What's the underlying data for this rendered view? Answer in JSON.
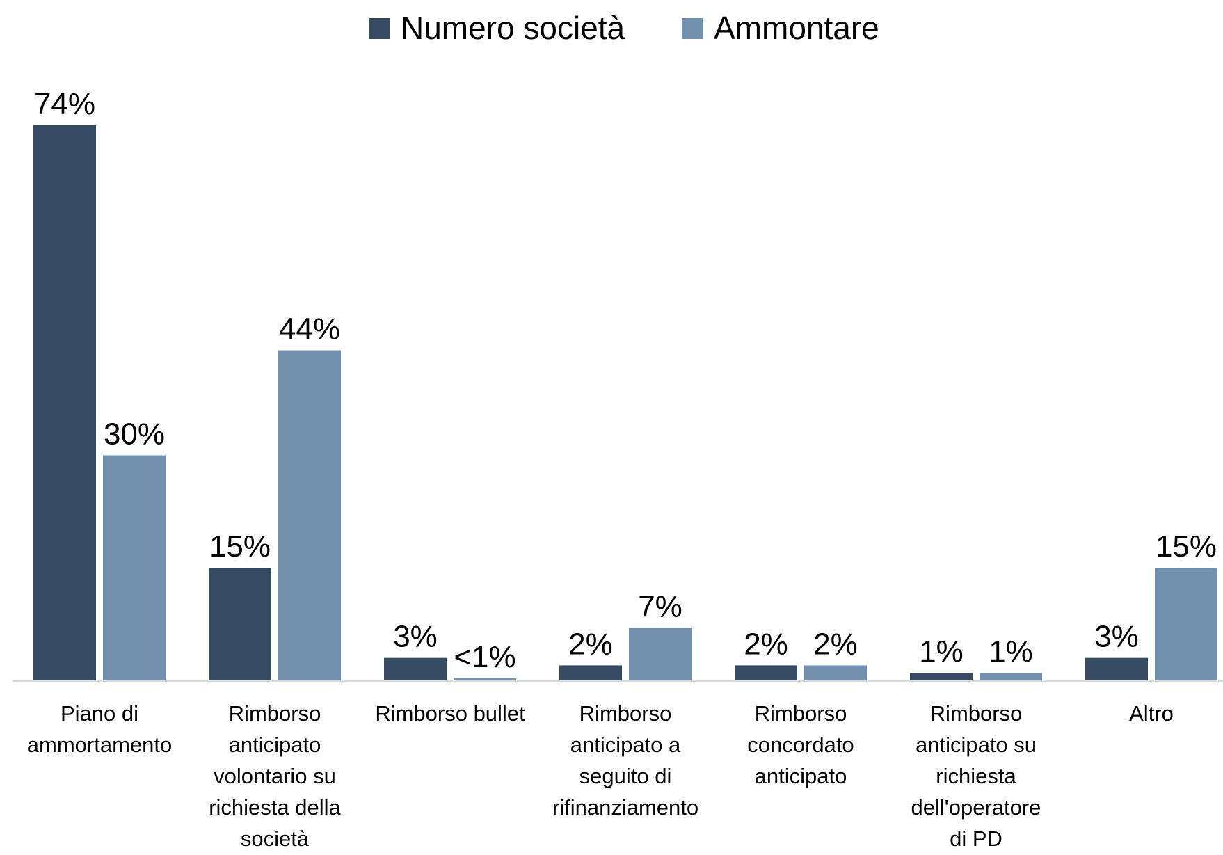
{
  "chart_data": {
    "type": "bar",
    "title": "",
    "xlabel": "",
    "ylabel": "",
    "ylim": [
      0,
      80
    ],
    "grid": false,
    "legend_position": "top-center",
    "categories": [
      [
        "Piano di",
        "ammortamento"
      ],
      [
        "Rimborso",
        "anticipato",
        "volontario su",
        "richiesta della",
        "società"
      ],
      [
        "Rimborso bullet"
      ],
      [
        "Rimborso",
        "anticipato a",
        "seguito di",
        "rifinanziamento"
      ],
      [
        "Rimborso",
        "concordato",
        "anticipato"
      ],
      [
        "Rimborso",
        "anticipato su",
        "richiesta",
        "dell'operatore",
        "di PD"
      ],
      [
        "Altro"
      ]
    ],
    "series": [
      {
        "name": "Numero società",
        "color": "#364b61",
        "values": [
          74,
          15,
          3,
          2,
          2,
          1,
          3
        ],
        "labels": [
          "74%",
          "15%",
          "3%",
          "2%",
          "2%",
          "1%",
          "3%"
        ]
      },
      {
        "name": "Ammontare",
        "color": "#7390af",
        "values": [
          30,
          44,
          0.3,
          7,
          2,
          1,
          15
        ],
        "labels": [
          "30%",
          "44%",
          "<1%",
          "7%",
          "2%",
          "1%",
          "15%"
        ]
      }
    ],
    "axis_color": "#d9d9d9"
  }
}
